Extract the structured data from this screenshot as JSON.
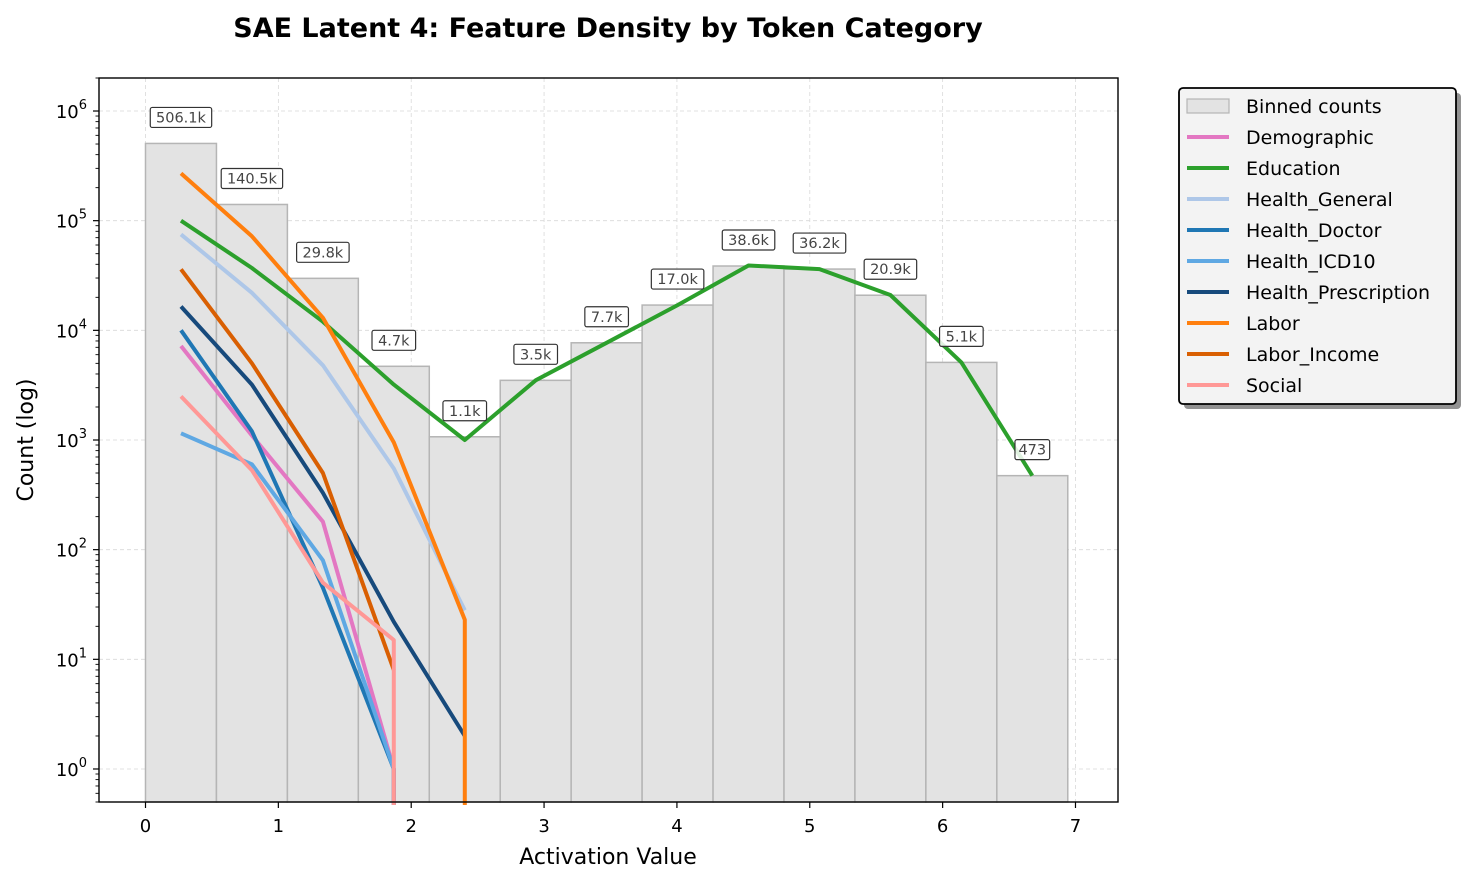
{
  "chart_data": {
    "type": "bar",
    "title": "SAE Latent 4: Feature Density by Token Category",
    "xlabel": "Activation Value",
    "ylabel": "Count (log)",
    "xlim": [
      -0.35,
      7.32
    ],
    "ylim": [
      0.5,
      2000000
    ],
    "yscale": "log",
    "grid": true,
    "legend_position": "outside-right-top",
    "x_ticks": [
      0,
      1,
      2,
      3,
      4,
      5,
      6,
      7
    ],
    "y_ticks": [
      {
        "value": 1,
        "base": "10",
        "exp": "0"
      },
      {
        "value": 10,
        "base": "10",
        "exp": "1"
      },
      {
        "value": 100,
        "base": "10",
        "exp": "2"
      },
      {
        "value": 1000,
        "base": "10",
        "exp": "3"
      },
      {
        "value": 10000,
        "base": "10",
        "exp": "4"
      },
      {
        "value": 100000,
        "base": "10",
        "exp": "5"
      },
      {
        "value": 1000000,
        "base": "10",
        "exp": "6"
      }
    ],
    "bars": {
      "name": "Binned counts",
      "edges": [
        0,
        0.534,
        1.068,
        1.602,
        2.136,
        2.67,
        3.204,
        3.738,
        4.272,
        4.806,
        5.34,
        5.874,
        6.408,
        6.942
      ],
      "values": [
        506100,
        140500,
        29800,
        4700,
        1070,
        3500,
        7700,
        17000,
        38600,
        36200,
        20900,
        5100,
        473
      ],
      "labels": [
        "506.1k",
        "140.5k",
        "29.8k",
        "4.7k",
        "1.1k",
        "3.5k",
        "7.7k",
        "17.0k",
        "38.6k",
        "36.2k",
        "20.9k",
        "5.1k",
        "473"
      ],
      "color": "#e3e3e3",
      "edge_color": "#b5b5b5"
    },
    "series": [
      {
        "name": "Demographic",
        "color": "#e377c2",
        "points": [
          [
            0.267,
            7200
          ],
          [
            0.801,
            1100
          ],
          [
            1.335,
            180
          ],
          [
            1.869,
            1
          ],
          [
            1.869,
            0.4
          ]
        ]
      },
      {
        "name": "Education",
        "color": "#2ca02c",
        "points": [
          [
            0.267,
            100000
          ],
          [
            0.801,
            37000
          ],
          [
            1.335,
            12000
          ],
          [
            1.869,
            3200
          ],
          [
            2.403,
            1000
          ],
          [
            2.937,
            3500
          ],
          [
            3.471,
            7700
          ],
          [
            4.005,
            17000
          ],
          [
            4.539,
            39000
          ],
          [
            5.073,
            36200
          ],
          [
            5.607,
            21000
          ],
          [
            6.141,
            5100
          ],
          [
            6.675,
            473
          ]
        ]
      },
      {
        "name": "Health_General",
        "color": "#aec7e8",
        "points": [
          [
            0.267,
            75000
          ],
          [
            0.801,
            22000
          ],
          [
            1.335,
            4800
          ],
          [
            1.869,
            550
          ],
          [
            2.403,
            28
          ]
        ]
      },
      {
        "name": "Health_Doctor",
        "color": "#1f77b4",
        "points": [
          [
            0.267,
            10000
          ],
          [
            0.801,
            1200
          ],
          [
            1.335,
            45
          ],
          [
            1.869,
            1
          ],
          [
            1.869,
            0.4
          ]
        ]
      },
      {
        "name": "Health_ICD10",
        "color": "#5fa8e3",
        "points": [
          [
            0.267,
            1150
          ],
          [
            0.801,
            600
          ],
          [
            1.335,
            80
          ],
          [
            1.869,
            1
          ]
        ]
      },
      {
        "name": "Health_Prescription",
        "color": "#174a7c",
        "points": [
          [
            0.267,
            16500
          ],
          [
            0.801,
            3200
          ],
          [
            1.335,
            330
          ],
          [
            1.869,
            22
          ],
          [
            2.403,
            2
          ]
        ]
      },
      {
        "name": "Labor",
        "color": "#ff7f0e",
        "points": [
          [
            0.267,
            270000
          ],
          [
            0.801,
            72000
          ],
          [
            1.335,
            13000
          ],
          [
            1.869,
            950
          ],
          [
            2.403,
            23
          ],
          [
            2.403,
            0.4
          ]
        ]
      },
      {
        "name": "Labor_Income",
        "color": "#d95f02",
        "points": [
          [
            0.267,
            36000
          ],
          [
            0.801,
            5000
          ],
          [
            1.335,
            500
          ],
          [
            1.869,
            8
          ]
        ]
      },
      {
        "name": "Social",
        "color": "#ff9896",
        "points": [
          [
            0.267,
            2500
          ],
          [
            0.801,
            530
          ],
          [
            1.335,
            50
          ],
          [
            1.869,
            15
          ],
          [
            1.869,
            0.4
          ]
        ]
      }
    ]
  }
}
